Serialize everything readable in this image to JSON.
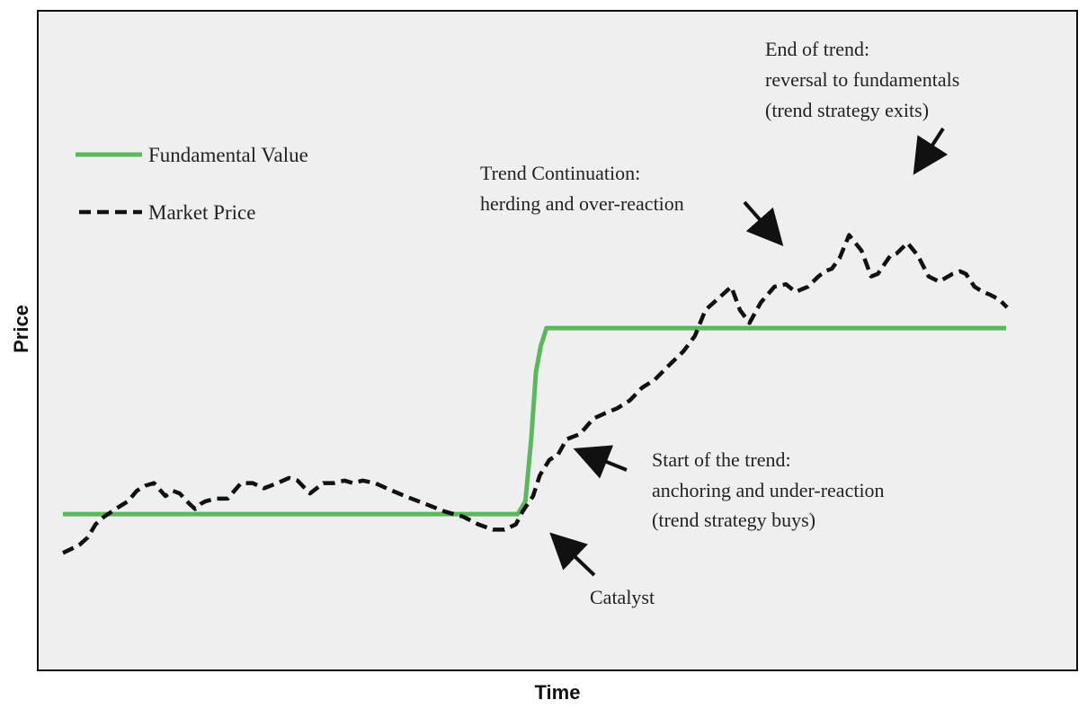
{
  "chart_data": {
    "type": "line",
    "xlabel": "Time",
    "ylabel": "Price",
    "xlim": [
      0,
      100
    ],
    "ylim": [
      0,
      100
    ],
    "grid": false,
    "legend_position": "top-left",
    "series": [
      {
        "name": "Fundamental Value",
        "color": "#5cb85c",
        "style": "solid",
        "x": [
          0,
          47.5,
          48.3,
          48.9,
          49.4,
          49.9,
          50.5,
          98.5
        ],
        "y": [
          20.5,
          20.5,
          23,
          35,
          48,
          53,
          56.5,
          56.5
        ]
      },
      {
        "name": "Market Price",
        "color": "#111111",
        "style": "dashed",
        "x": [
          0,
          1.7,
          2.6,
          3.4,
          4.3,
          5.5,
          6.8,
          7.7,
          8.6,
          9.5,
          10.7,
          11.5,
          12.2,
          13.2,
          13.8,
          14.4,
          14.9,
          16.0,
          17.2,
          18.6,
          19.8,
          21.0,
          22.4,
          23.6,
          24.5,
          25.8,
          27.2,
          28.3,
          29.4,
          30.3,
          31.3,
          32.6,
          33.8,
          35.7,
          37.8,
          39.9,
          41.8,
          43.4,
          44.9,
          46.1,
          47.3,
          48.0,
          49.1,
          49.8,
          50.8,
          51.7,
          52.6,
          54.0,
          55.4,
          56.6,
          57.9,
          59.2,
          60.5,
          61.8,
          63.4,
          64.8,
          66.0,
          67.1,
          68.3,
          69.8,
          70.7,
          71.7,
          72.9,
          74.3,
          75.5,
          76.5,
          77.8,
          78.9,
          79.6,
          80.3,
          81.1,
          82.1,
          83.4,
          84.4,
          85.1,
          86.4,
          87.1,
          88.2,
          89.3,
          90.4,
          91.5,
          92.9,
          93.7,
          94.3,
          95.2,
          96.1,
          96.8,
          97.8,
          98.6
        ],
        "y": [
          13,
          14.5,
          16,
          18.5,
          20,
          21.5,
          23,
          25,
          26,
          26.5,
          24,
          25,
          24.5,
          22.5,
          21.5,
          22.5,
          23,
          23.5,
          23.5,
          26.5,
          26.5,
          25.5,
          26.5,
          27.5,
          27,
          24.5,
          26.5,
          26.5,
          27,
          26.5,
          27,
          26.5,
          25.5,
          24,
          22.5,
          21,
          20,
          18.5,
          17.5,
          17.5,
          18.5,
          21,
          24,
          28,
          31,
          32,
          35,
          36,
          39,
          40,
          41,
          42.5,
          45,
          46.5,
          49.5,
          52,
          55,
          60,
          62,
          64.5,
          60,
          57.5,
          61.5,
          64.5,
          65,
          63.5,
          64.5,
          66.5,
          67.5,
          68,
          70,
          74.5,
          71.5,
          66.5,
          67,
          70.5,
          71,
          73,
          70.5,
          66.5,
          65.5,
          67,
          67.5,
          67,
          64.5,
          63.5,
          63,
          62,
          60.5
        ]
      }
    ],
    "annotations": [
      {
        "id": "catalyst",
        "text": [
          "Catalyst"
        ],
        "point": [
          48.7,
          22.0
        ]
      },
      {
        "id": "start",
        "text": [
          "Start of the trend:",
          "anchoring and under-reaction",
          "(trend strategy buys)"
        ],
        "point": [
          50.5,
          32.5
        ]
      },
      {
        "id": "continuation",
        "text": [
          "Trend Continuation:",
          "herding and over-reaction"
        ],
        "point": [
          74.5,
          68.0
        ]
      },
      {
        "id": "end",
        "text": [
          "End of trend:",
          "reversal to fundamentals",
          "(trend strategy exits)"
        ],
        "point": [
          85.9,
          73.0
        ]
      }
    ]
  }
}
